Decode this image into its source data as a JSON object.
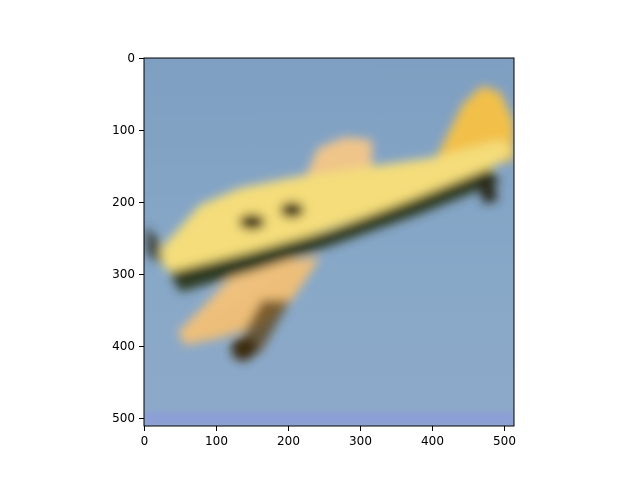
{
  "image": {
    "subject": "yellow-airplane",
    "sky_color": "#86a6c6",
    "plane_color": "#f2d36a"
  },
  "axes": {
    "x_ticks": [
      "0",
      "100",
      "200",
      "300",
      "400",
      "500"
    ],
    "y_ticks": [
      "0",
      "100",
      "200",
      "300",
      "400",
      "500"
    ]
  }
}
